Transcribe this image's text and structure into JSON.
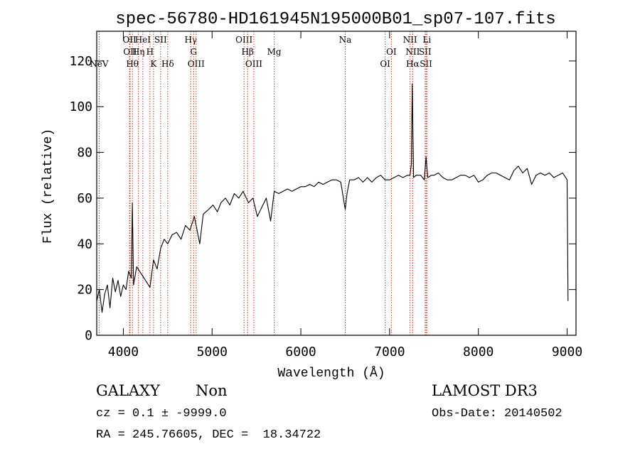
{
  "chart_data": {
    "type": "line",
    "title": "spec-56780-HD161945N195000B01_sp07-107.fits",
    "xlabel": "Wavelength (Å)",
    "ylabel": "Flux (relative)",
    "xlim": [
      3700,
      9100
    ],
    "ylim": [
      0,
      133
    ],
    "xticks": [
      4000,
      5000,
      6000,
      7000,
      8000,
      9000
    ],
    "yticks": [
      0,
      20,
      40,
      60,
      80,
      100,
      120
    ],
    "line_color": "#000000",
    "marker_color": "#c0392b",
    "grid": false,
    "series": [
      {
        "x": [
          3700,
          3730,
          3760,
          3790,
          3820,
          3850,
          3880,
          3910,
          3940,
          3970,
          4000,
          4030,
          4060,
          4090,
          4101,
          4115,
          4150,
          4200,
          4250,
          4300,
          4340,
          4380,
          4420,
          4460,
          4500,
          4550,
          4600,
          4650,
          4700,
          4750,
          4800,
          4861,
          4900,
          4960,
          5010,
          5060,
          5100,
          5150,
          5200,
          5250,
          5300,
          5350,
          5410,
          5460,
          5510,
          5560,
          5610,
          5660,
          5700,
          5750,
          5800,
          5850,
          5900,
          5950,
          6000,
          6050,
          6100,
          6150,
          6200,
          6250,
          6300,
          6350,
          6400,
          6450,
          6500,
          6520,
          6550,
          6600,
          6650,
          6700,
          6750,
          6800,
          6850,
          6900,
          6950,
          7000,
          7050,
          7100,
          7150,
          7200,
          7230,
          7245,
          7255,
          7270,
          7300,
          7350,
          7390,
          7410,
          7430,
          7470,
          7500,
          7550,
          7600,
          7650,
          7700,
          7750,
          7800,
          7850,
          7900,
          7950,
          8000,
          8050,
          8100,
          8150,
          8200,
          8250,
          8300,
          8350,
          8400,
          8450,
          8500,
          8550,
          8600,
          8650,
          8700,
          8750,
          8800,
          8850,
          8900,
          8950,
          9000,
          9010
        ],
        "y": [
          15,
          20,
          10,
          18,
          22,
          12,
          25,
          19,
          24,
          17,
          22,
          20,
          28,
          25,
          58,
          22,
          30,
          27,
          24,
          21,
          33,
          29,
          38,
          42,
          40,
          44,
          45,
          42,
          48,
          46,
          52,
          40,
          53,
          55,
          57,
          54,
          58,
          60,
          57,
          62,
          60,
          63,
          58,
          60,
          52,
          56,
          60,
          50,
          63,
          62,
          63,
          64,
          63,
          64,
          65,
          65,
          66,
          65,
          67,
          66,
          67,
          68,
          68,
          67,
          55,
          62,
          68,
          68,
          69,
          67,
          69,
          67,
          69,
          70,
          68,
          68,
          69,
          70,
          69,
          70,
          70,
          75,
          110,
          69,
          70,
          70,
          68,
          78,
          69,
          70,
          70,
          71,
          69,
          68,
          68,
          69,
          70,
          70,
          69,
          70,
          67,
          68,
          70,
          71,
          71,
          70,
          69,
          68,
          72,
          74,
          71,
          73,
          66,
          70,
          71,
          70,
          71,
          69,
          70,
          71,
          68,
          15
        ]
      }
    ],
    "lines": [
      {
        "x": 3727,
        "label": "NeV",
        "row": 2
      },
      {
        "x": 4069,
        "label": "OII",
        "row": 0
      },
      {
        "x": 4076,
        "label": "OII",
        "row": 1
      },
      {
        "x": 4102,
        "label": "Hθ",
        "row": 2
      },
      {
        "x": 4170,
        "label": "Hη",
        "row": 1
      },
      {
        "x": 4220,
        "label": "HeI",
        "row": 0
      },
      {
        "x": 4300,
        "label": "H",
        "row": 1
      },
      {
        "x": 4340,
        "label": "K",
        "row": 2
      },
      {
        "x": 4420,
        "label": "SII",
        "row": 0
      },
      {
        "x": 4500,
        "label": "Hδ",
        "row": 2
      },
      {
        "x": 4760,
        "label": "Hγ",
        "row": 0
      },
      {
        "x": 4792,
        "label": "G",
        "row": 1
      },
      {
        "x": 4820,
        "label": "OIII",
        "row": 2
      },
      {
        "x": 5360,
        "label": "OIII",
        "row": 0
      },
      {
        "x": 5400,
        "label": "Hβ",
        "row": 1
      },
      {
        "x": 5470,
        "label": "OIII",
        "row": 2
      },
      {
        "x": 5700,
        "label": "Mg",
        "row": 1
      },
      {
        "x": 6500,
        "label": "Na",
        "row": 0
      },
      {
        "x": 6950,
        "label": "OI",
        "row": 2
      },
      {
        "x": 7020,
        "label": "OI",
        "row": 1
      },
      {
        "x": 7230,
        "label": "NII",
        "row": 0
      },
      {
        "x": 7260,
        "label": "NII",
        "row": 1
      },
      {
        "x": 7260,
        "label": "Hα",
        "row": 2
      },
      {
        "x": 7400,
        "label": "SII",
        "row": 1
      },
      {
        "x": 7410,
        "label": "SII",
        "row": 2
      },
      {
        "x": 7420,
        "label": "Li",
        "row": 0
      }
    ]
  },
  "info": {
    "object_class": "GALAXY",
    "subclass": "Non",
    "survey": "LAMOST DR3",
    "redshift_line": "cz = 0.1 ± -9999.0",
    "obs_date": "Obs-Date: 20140502",
    "coords": "RA = 245.76605, DEC =  18.34722"
  }
}
